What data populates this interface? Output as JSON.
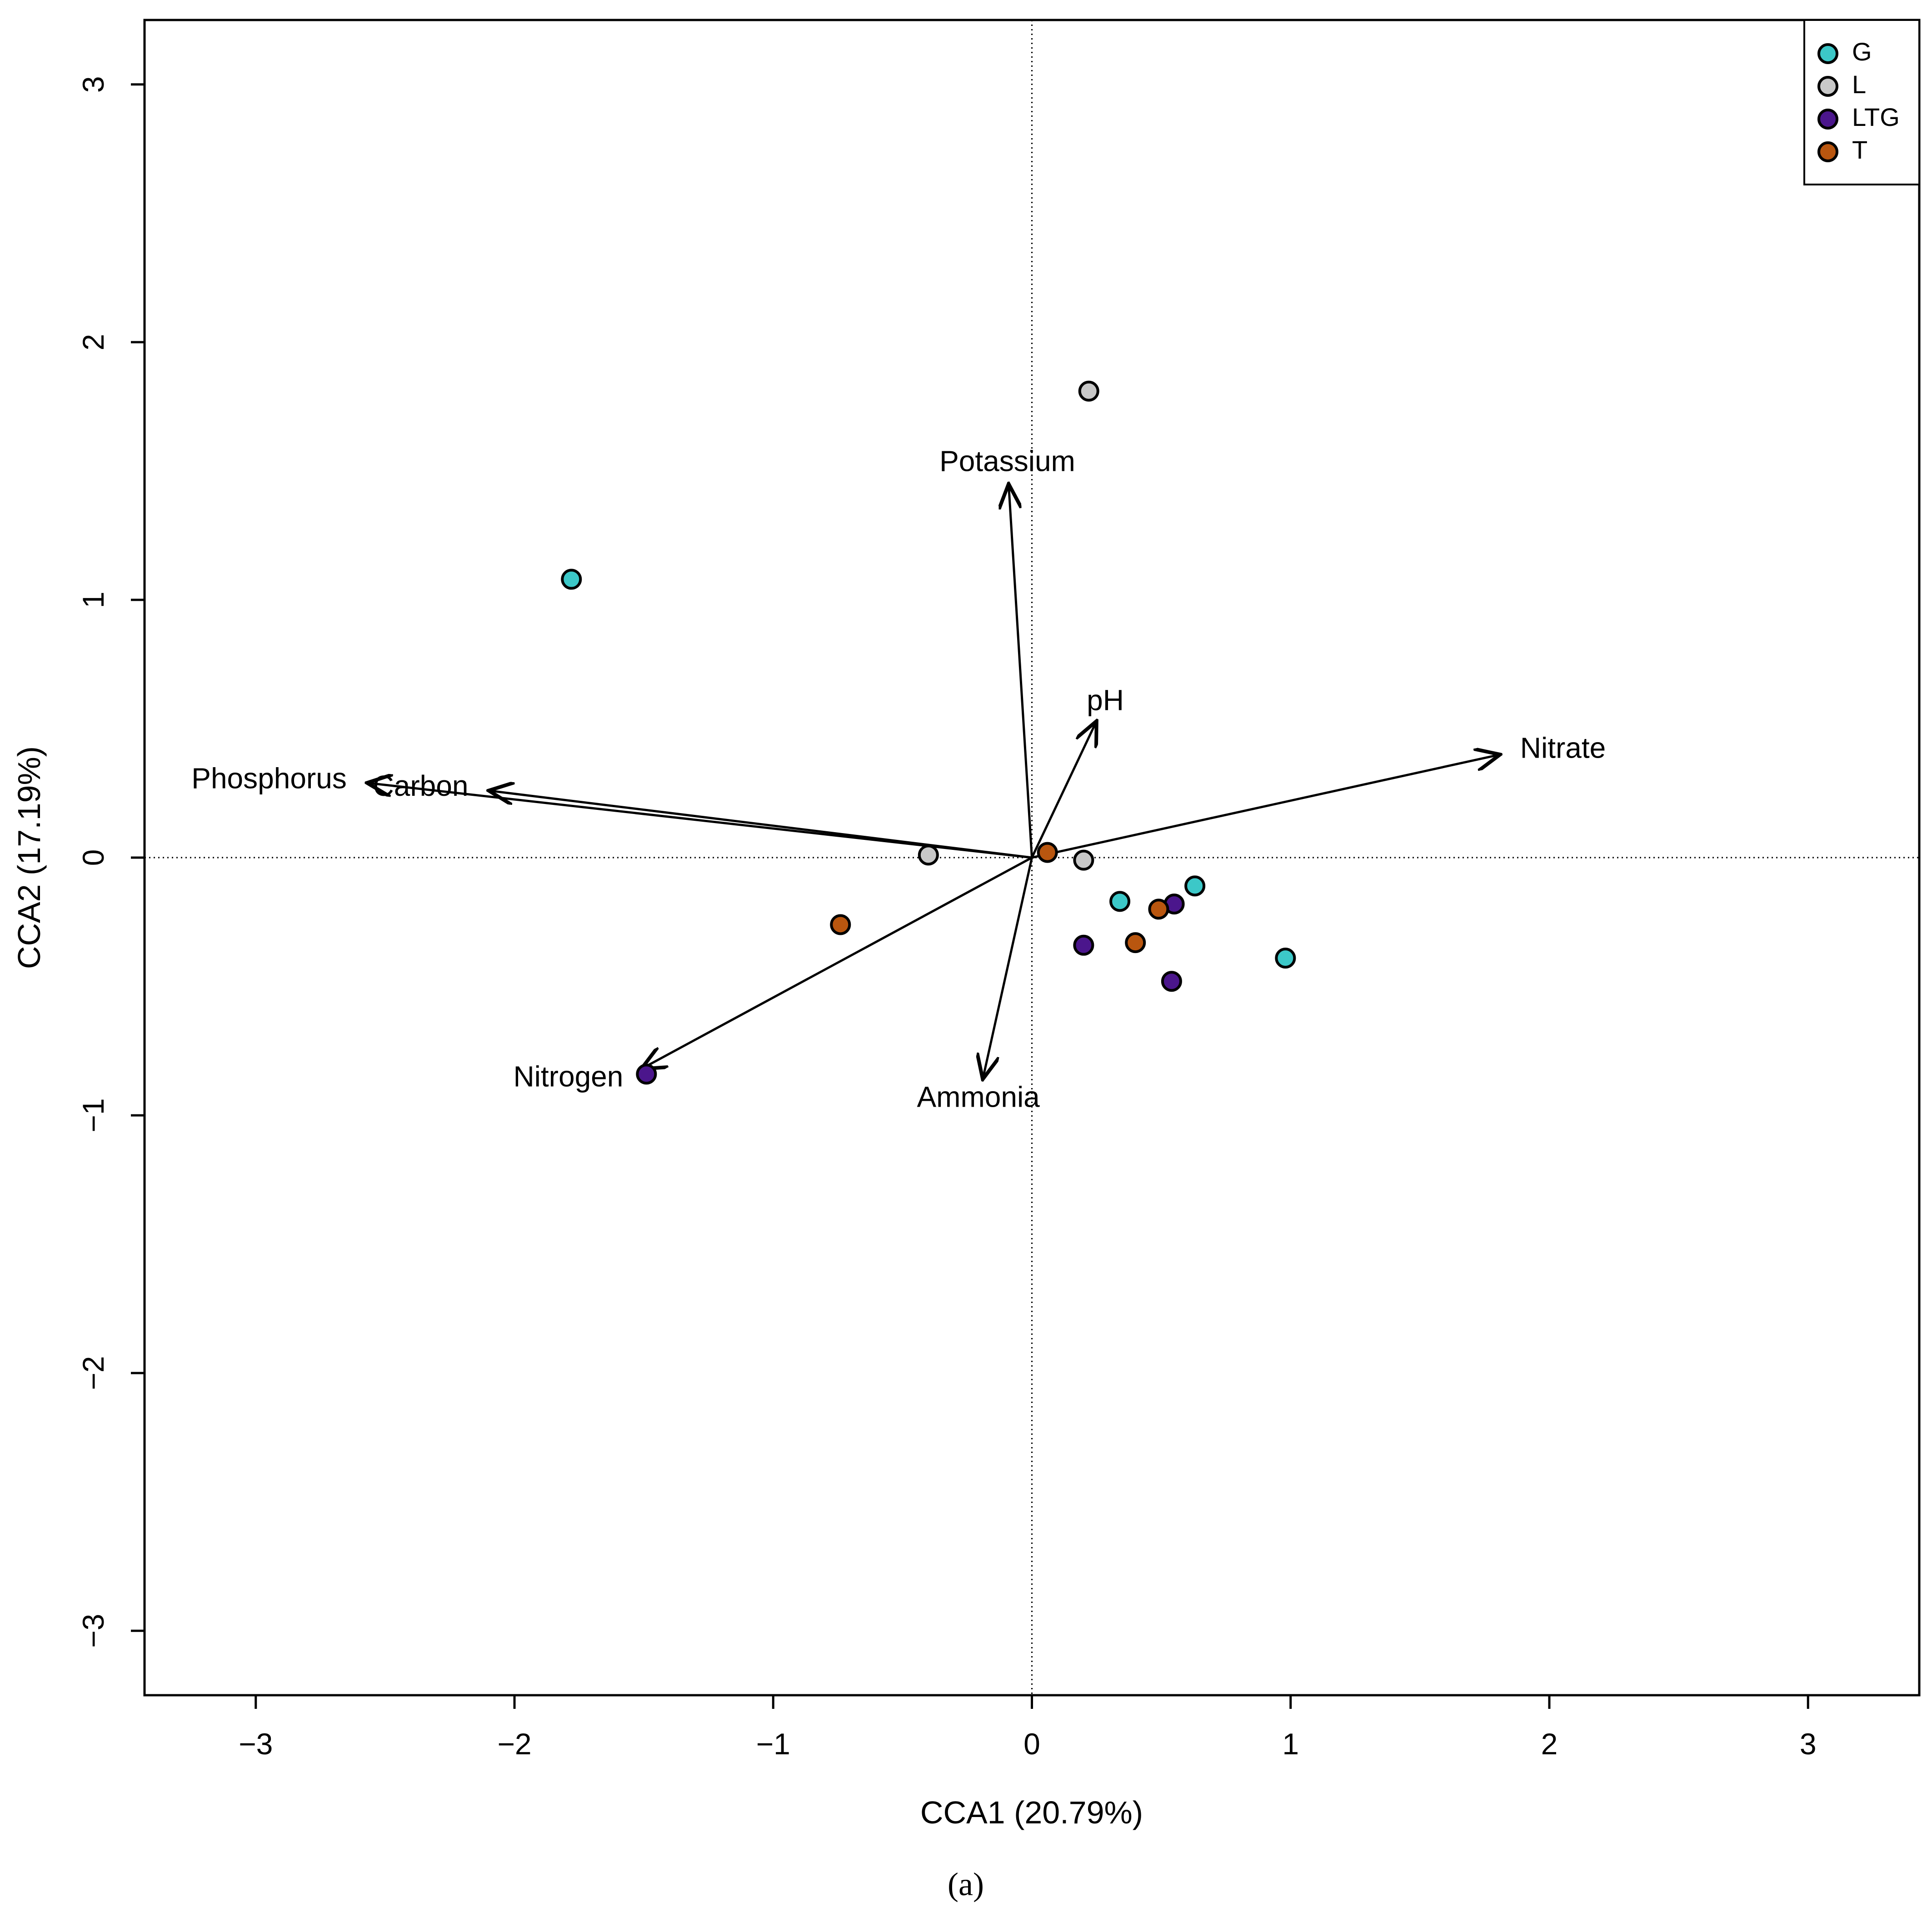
{
  "chart_data": {
    "type": "scatter",
    "subtype": "cca-biplot",
    "xlabel": "CCA1 (20.79%)",
    "ylabel": "CCA2 (17.19%)",
    "caption": "(a)",
    "xlim": [
      -3.43,
      3.43
    ],
    "ylim": [
      -3.25,
      3.25
    ],
    "x_ticks": [
      -3,
      -2,
      -1,
      0,
      1,
      2,
      3
    ],
    "y_ticks": [
      -3,
      -2,
      -1,
      0,
      1,
      2,
      3
    ],
    "tick_labels": {
      "x": [
        "−3",
        "−2",
        "−1",
        "0",
        "1",
        "2",
        "3"
      ],
      "y": [
        "−3",
        "−2",
        "−1",
        "0",
        "1",
        "2",
        "3"
      ]
    },
    "reference_lines": {
      "x": 0,
      "y": 0,
      "style": "dotted"
    },
    "legend": {
      "position": "top-right",
      "entries": [
        {
          "label": "G",
          "color": "#3CC8C8"
        },
        {
          "label": "L",
          "color": "#C8C8C8"
        },
        {
          "label": "LTG",
          "color": "#4B168C"
        },
        {
          "label": "T",
          "color": "#B9560F"
        }
      ]
    },
    "points": [
      {
        "group": "G",
        "x": -1.78,
        "y": 1.08
      },
      {
        "group": "G",
        "x": 0.34,
        "y": -0.17
      },
      {
        "group": "G",
        "x": 0.63,
        "y": -0.11
      },
      {
        "group": "G",
        "x": 0.98,
        "y": -0.39
      },
      {
        "group": "L",
        "x": 0.22,
        "y": 1.81
      },
      {
        "group": "L",
        "x": -0.4,
        "y": 0.01
      },
      {
        "group": "L",
        "x": 0.2,
        "y": -0.01
      },
      {
        "group": "LTG",
        "x": -1.49,
        "y": -0.84
      },
      {
        "group": "LTG",
        "x": 0.2,
        "y": -0.34
      },
      {
        "group": "LTG",
        "x": 0.55,
        "y": -0.18
      },
      {
        "group": "LTG",
        "x": 0.54,
        "y": -0.48
      },
      {
        "group": "T",
        "x": -0.74,
        "y": -0.26
      },
      {
        "group": "T",
        "x": 0.06,
        "y": 0.02
      },
      {
        "group": "T",
        "x": 0.49,
        "y": -0.2
      },
      {
        "group": "T",
        "x": 0.4,
        "y": -0.33
      }
    ],
    "vectors": [
      {
        "label": "Potassium",
        "x": -0.09,
        "y": 1.45
      },
      {
        "label": "pH",
        "x": 0.25,
        "y": 0.53
      },
      {
        "label": "Nitrate",
        "x": 1.81,
        "y": 0.4
      },
      {
        "label": "Phosphorus",
        "x": -2.57,
        "y": 0.29
      },
      {
        "label": "Carbon",
        "x": -2.1,
        "y": 0.26
      },
      {
        "label": "Nitrogen",
        "x": -1.51,
        "y": -0.82
      },
      {
        "label": "Ammonia",
        "x": -0.19,
        "y": -0.86
      }
    ]
  }
}
